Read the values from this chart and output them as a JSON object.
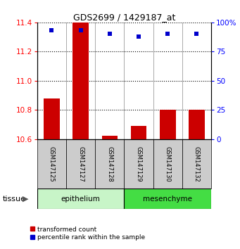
{
  "title": "GDS2699 / 1429187_at",
  "samples": [
    "GSM147125",
    "GSM147127",
    "GSM147128",
    "GSM147129",
    "GSM147130",
    "GSM147132"
  ],
  "red_values": [
    10.88,
    11.4,
    10.62,
    10.69,
    10.8,
    10.8
  ],
  "blue_percentiles": [
    93,
    93,
    90,
    88,
    90,
    90
  ],
  "ylim_left": [
    10.6,
    11.4
  ],
  "ylim_right": [
    0,
    100
  ],
  "yticks_left": [
    10.6,
    10.8,
    11.0,
    11.2,
    11.4
  ],
  "yticks_right": [
    0,
    25,
    50,
    75,
    100
  ],
  "ytick_labels_right": [
    "0",
    "25",
    "50",
    "75",
    "100%"
  ],
  "epi_color": "#C8F5C8",
  "mes_color": "#44DD44",
  "bar_color": "#CC0000",
  "dot_color": "#0000CC",
  "base_value": 10.6,
  "sample_box_color": "#CCCCCC",
  "tissue_label": "tissue",
  "legend_red": "transformed count",
  "legend_blue": "percentile rank within the sample"
}
